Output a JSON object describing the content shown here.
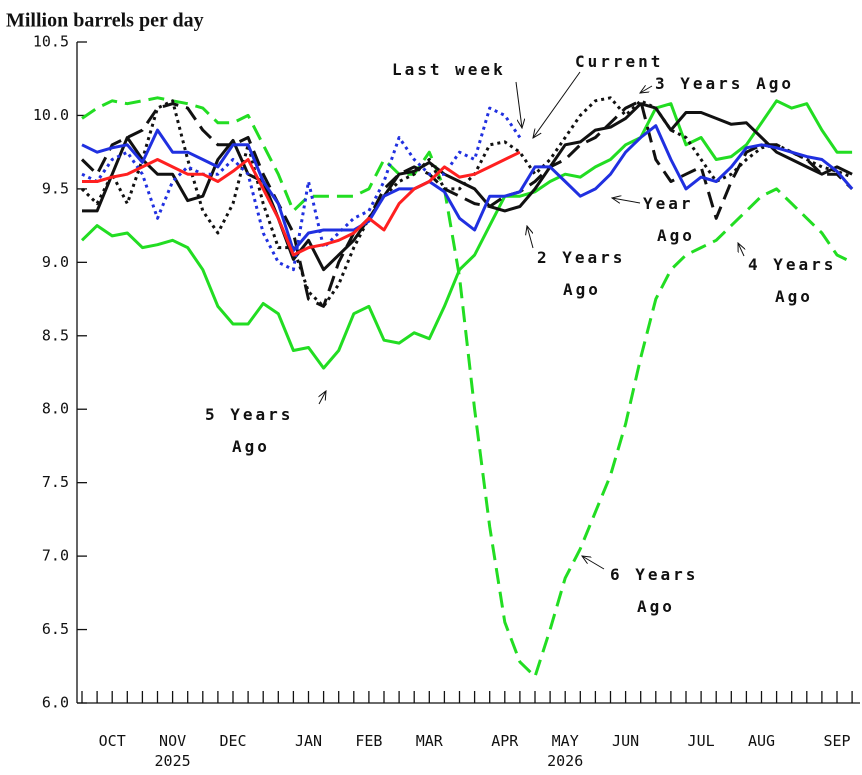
{
  "chart_data": {
    "type": "line",
    "title": "Million barrels per day",
    "categories": [
      null,
      null,
      "OCT",
      null,
      null,
      null,
      "NOV\n2025",
      null,
      null,
      null,
      "DEC",
      null,
      null,
      null,
      null,
      "JAN",
      null,
      null,
      null,
      "FEB",
      null,
      null,
      null,
      "MAR",
      null,
      null,
      null,
      null,
      "APR",
      null,
      null,
      null,
      "MAY\n2026",
      null,
      null,
      null,
      "JUN",
      null,
      null,
      null,
      null,
      "JUL",
      null,
      null,
      null,
      "AUG",
      null,
      null,
      null,
      null,
      "SEP",
      null
    ],
    "ylim": [
      6,
      10.5
    ],
    "yticks": [
      {
        "value": 6,
        "label": "6.0"
      },
      6.5,
      {
        "value": 7,
        "label": "7.0"
      },
      7.5,
      {
        "value": 8,
        "label": "8.0"
      },
      8.5,
      {
        "value": 9,
        "label": "9.0"
      },
      9.5,
      {
        "value": 10,
        "label": "10.0"
      },
      10.5
    ],
    "series": [
      {
        "color": "#22dd22",
        "style": "dashed",
        "values": [
          9.98,
          10.05,
          10.1,
          10.08,
          10.1,
          10.12,
          10.1,
          10.08,
          10.05,
          9.95,
          9.95,
          10.0,
          9.8,
          9.6,
          9.35,
          9.45,
          9.45,
          9.45,
          9.45,
          9.5,
          9.7,
          9.6,
          9.6,
          9.75,
          9.5,
          8.9,
          8.0,
          7.2,
          6.55,
          6.28,
          6.18,
          6.5,
          6.85,
          7.05,
          7.3,
          7.55,
          7.9,
          8.35,
          8.75,
          8.95,
          9.05,
          9.1,
          9.15,
          9.25,
          9.35,
          9.45,
          9.5,
          9.4,
          9.3,
          9.2,
          9.05,
          9.0
        ]
      },
      {
        "color": "#22dd22",
        "style": "solid",
        "values": [
          9.15,
          9.25,
          9.18,
          9.2,
          9.1,
          9.12,
          9.15,
          9.1,
          8.95,
          8.7,
          8.58,
          8.58,
          8.72,
          8.65,
          8.4,
          8.42,
          8.28,
          8.4,
          8.65,
          8.7,
          8.47,
          8.45,
          8.52,
          8.48,
          8.7,
          8.95,
          9.05,
          9.25,
          9.45,
          9.45,
          9.48,
          9.55,
          9.6,
          9.58,
          9.65,
          9.7,
          9.8,
          9.85,
          10.05,
          10.08,
          9.8,
          9.85,
          9.7,
          9.72,
          9.8,
          9.95,
          10.1,
          10.05,
          10.08,
          9.9,
          9.75,
          9.75
        ]
      },
      {
        "color": "#111111",
        "style": "dashed",
        "values": [
          9.7,
          9.6,
          9.8,
          9.85,
          9.9,
          10.05,
          10.08,
          10.05,
          9.9,
          9.8,
          9.8,
          9.85,
          9.6,
          9.4,
          9.2,
          8.75,
          8.7,
          9.0,
          9.2,
          9.3,
          9.5,
          9.6,
          9.65,
          9.6,
          9.5,
          9.45,
          9.4,
          9.38,
          9.45,
          9.48,
          9.55,
          9.65,
          9.7,
          9.8,
          9.85,
          9.95,
          10.05,
          10.1,
          9.7,
          9.55,
          9.6,
          9.65,
          9.3,
          9.55,
          9.75,
          9.8,
          9.8,
          9.75,
          9.7,
          9.6,
          9.6,
          9.5
        ]
      },
      {
        "color": "#111111",
        "style": "dotted",
        "values": [
          9.5,
          9.4,
          9.6,
          9.4,
          9.7,
          10.05,
          10.1,
          9.7,
          9.35,
          9.2,
          9.4,
          9.8,
          9.4,
          9.1,
          9.1,
          8.8,
          8.7,
          8.85,
          9.1,
          9.3,
          9.45,
          9.55,
          9.6,
          9.7,
          9.5,
          9.5,
          9.6,
          9.8,
          9.82,
          9.75,
          9.6,
          9.7,
          9.85,
          10.0,
          10.1,
          10.12,
          10.0,
          10.1,
          10.05,
          9.9,
          9.85,
          9.7,
          9.55,
          9.6,
          9.7,
          9.78,
          9.8,
          9.75,
          9.7,
          9.65,
          9.62,
          9.58
        ]
      },
      {
        "color": "#111111",
        "style": "solid",
        "values": [
          9.35,
          9.35,
          9.6,
          9.85,
          9.7,
          9.6,
          9.6,
          9.42,
          9.45,
          9.7,
          9.83,
          9.6,
          9.55,
          9.3,
          9.02,
          9.15,
          8.95,
          9.05,
          9.15,
          9.3,
          9.45,
          9.6,
          9.62,
          9.68,
          9.6,
          9.55,
          9.5,
          9.38,
          9.35,
          9.38,
          9.5,
          9.65,
          9.8,
          9.82,
          9.9,
          9.92,
          9.98,
          10.08,
          10.05,
          9.9,
          10.02,
          10.02,
          9.98,
          9.94,
          9.95,
          9.85,
          9.75,
          9.7,
          9.65,
          9.6,
          9.65,
          9.6
        ]
      },
      {
        "color": "#2030e0",
        "style": "dotted",
        "values": [
          9.6,
          9.55,
          9.7,
          9.75,
          9.6,
          9.3,
          9.55,
          9.65,
          9.6,
          9.6,
          9.7,
          9.6,
          9.2,
          9.0,
          8.95,
          9.55,
          9.1,
          9.2,
          9.3,
          9.35,
          9.55,
          9.85,
          9.7,
          9.6,
          9.6,
          9.75,
          9.7,
          10.05,
          10.0,
          9.85,
          null,
          null,
          null,
          null,
          null,
          null,
          null,
          null,
          null,
          null,
          null,
          null,
          null,
          null,
          null,
          null,
          null,
          null,
          null,
          null,
          null,
          null
        ]
      },
      {
        "color": "#2030e0",
        "style": "solid",
        "values": [
          9.8,
          9.75,
          9.78,
          9.8,
          9.68,
          9.9,
          9.75,
          9.75,
          9.7,
          9.65,
          9.8,
          9.8,
          9.55,
          9.4,
          9.08,
          9.2,
          9.22,
          9.22,
          9.22,
          9.28,
          9.45,
          9.5,
          9.5,
          9.55,
          9.48,
          9.3,
          9.22,
          9.45,
          9.45,
          9.48,
          9.65,
          9.65,
          9.55,
          9.45,
          9.5,
          9.6,
          9.75,
          9.85,
          9.93,
          9.7,
          9.5,
          9.58,
          9.55,
          9.65,
          9.78,
          9.8,
          9.78,
          9.75,
          9.72,
          9.7,
          9.62,
          9.5
        ]
      },
      {
        "color": "#ff2020",
        "style": "solid",
        "values": [
          9.55,
          9.55,
          9.58,
          9.6,
          9.65,
          9.7,
          9.65,
          9.6,
          9.6,
          9.55,
          9.62,
          9.7,
          9.5,
          9.3,
          9.05,
          9.1,
          9.12,
          9.15,
          9.2,
          9.3,
          9.22,
          9.4,
          9.5,
          9.55,
          9.65,
          9.58,
          9.6,
          9.65,
          9.7,
          9.75,
          null,
          null,
          null,
          null,
          null,
          null,
          null,
          null,
          null,
          null,
          null,
          null,
          null,
          null,
          null,
          null,
          null,
          null,
          null,
          null,
          null,
          null
        ]
      }
    ],
    "annotations": [
      "Last week",
      "Current",
      "3 Years Ago",
      "Year\nAgo",
      "2 Years\nAgo",
      "4 Years\nAgo",
      "5 Years\nAgo",
      "6 Years\nAgo"
    ]
  }
}
